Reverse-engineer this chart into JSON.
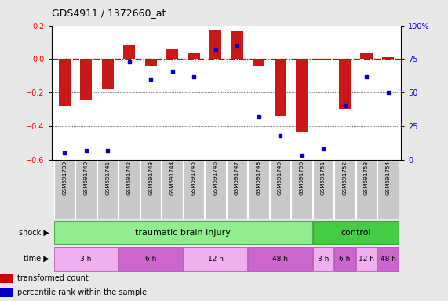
{
  "title": "GDS4911 / 1372660_at",
  "samples": [
    "GSM591739",
    "GSM591740",
    "GSM591741",
    "GSM591742",
    "GSM591743",
    "GSM591744",
    "GSM591745",
    "GSM591746",
    "GSM591747",
    "GSM591748",
    "GSM591749",
    "GSM591750",
    "GSM591751",
    "GSM591752",
    "GSM591753",
    "GSM591754"
  ],
  "transformed_count": [
    -0.28,
    -0.24,
    -0.18,
    0.08,
    -0.04,
    0.06,
    0.04,
    0.175,
    0.165,
    -0.04,
    -0.34,
    -0.44,
    -0.01,
    -0.3,
    0.04,
    0.01
  ],
  "percentile_rank": [
    5,
    7,
    7,
    73,
    60,
    66,
    62,
    82,
    85,
    32,
    18,
    3,
    8,
    40,
    62,
    50
  ],
  "ylim_left": [
    -0.6,
    0.2
  ],
  "ylim_right": [
    0,
    100
  ],
  "yticks_left": [
    0.2,
    0.0,
    -0.2,
    -0.4,
    -0.6
  ],
  "yticks_right": [
    100,
    75,
    50,
    25,
    0
  ],
  "bar_color": "#C81818",
  "dot_color": "#0000CD",
  "ref_line_color": "#CC0000",
  "background_color": "#E8E8E8",
  "plot_bg": "#FFFFFF",
  "label_bg": "#C8C8C8",
  "shock_tbi_color": "#90EE90",
  "shock_ctrl_color": "#44CC44",
  "time_color_light": "#EEB0EE",
  "time_color_dark": "#CC66CC",
  "legend_red": "#CC0000",
  "legend_blue": "#0000CD"
}
